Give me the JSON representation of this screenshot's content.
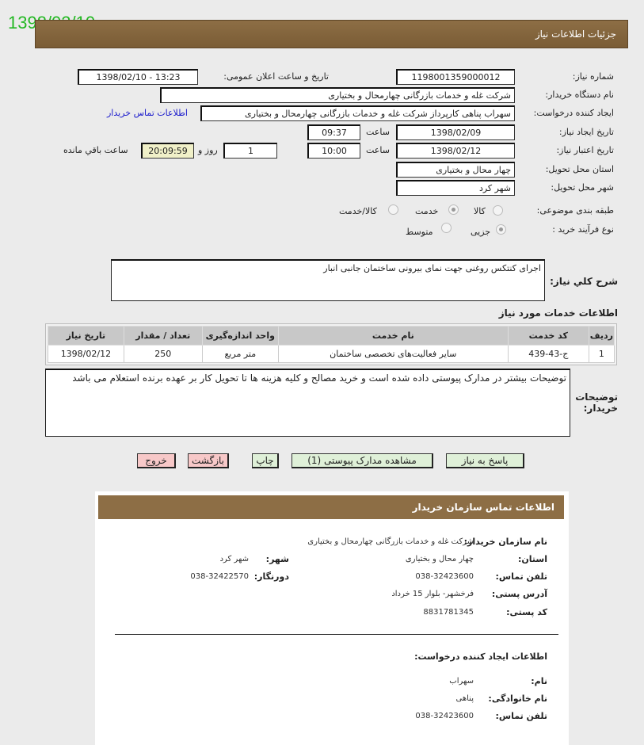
{
  "stamp_date": "1398/02/10",
  "header": {
    "title": "جزئیات اطلاعات نیاز"
  },
  "form": {
    "need_number_label": "شماره نیاز:",
    "need_number": "1198001359000012",
    "announce_label": "تاریخ و ساعت اعلان عمومی:",
    "announce_value": "1398/02/10 - 13:23",
    "buyer_label": "نام دستگاه خریدار:",
    "buyer_value": "شرکت غله و خدمات بازرگانی چهارمحال و بختیاری",
    "creator_label": "ایجاد کننده درخواست:",
    "creator_value": "سهراب پناهی کارپرداز شرکت غله و خدمات بازرگانی چهارمحال و بختیاری",
    "contact_link": "اطلاعات تماس خریدار",
    "created_label": "تاریخ ایجاد نیاز:",
    "created_date": "1398/02/09",
    "time_label": "ساعت",
    "created_time": "09:37",
    "valid_label": "تاریخ اعتبار نیاز:",
    "valid_date": "1398/02/12",
    "valid_time": "10:00",
    "days": "1",
    "days_label": "روز و",
    "remaining": "20:09:59",
    "remaining_label": "ساعت باقي مانده",
    "province_label": "استان محل تحویل:",
    "province": "چهار محال و بختیاری",
    "city_label": "شهر محل تحویل:",
    "city": "شهر کرد",
    "category_label": "طبقه بندی موضوعی:",
    "category_options": [
      "کالا",
      "خدمت",
      "کالا/خدمت"
    ],
    "category_selected": "خدمت",
    "process_label": "نوع فرآیند خرید :",
    "process_options": [
      "جزیی",
      "متوسط"
    ],
    "process_selected": "جزیی",
    "desc_label": "شرح کلي نياز:",
    "desc_value": "اجرای کنتکس روغنی جهت نمای بیرونی ساختمان جانبی انبار"
  },
  "services": {
    "title": "اطلاعات خدمات مورد نیاز",
    "columns": [
      "ردیف",
      "کد خدمت",
      "نام خدمت",
      "واحد اندازه‌گیری",
      "تعداد / مقدار",
      "تاریخ نیاز"
    ],
    "rows": [
      [
        "1",
        "ج-43-439",
        "سایر فعالیت‌های تخصصی ساختمان",
        "متر مربع",
        "250",
        "1398/02/12"
      ]
    ]
  },
  "notes": {
    "label": "توضیحات خریدار:",
    "value": "توضیحات بیشتر در مدارک پیوستی داده شده است و خرید مصالح و کلیه هزینه ها تا تحویل کار بر عهده برنده استعلام می باشد"
  },
  "buttons": {
    "reply": "پاسخ به نیاز",
    "attachments": "مشاهده مدارک پیوستی (1)",
    "print": "چاپ",
    "back": "بازگشت",
    "exit": "خروج"
  },
  "contact": {
    "title": "اطلاعات تماس سازمان خریدار",
    "org_label": "نام سازمان خریدار:",
    "org": "شرکت غله و خدمات بازرگانی چهارمحال و بختیاری",
    "province_label": "استان:",
    "province": "چهار محال و بختیاری",
    "city_label": "شهر:",
    "city": "شهر کرد",
    "phone_label": "تلفن تماس:",
    "phone": "038-32423600",
    "fax_label": "دورنگار:",
    "fax": "038-32422570",
    "address_label": "آدرس پستی:",
    "address": "فرخشهر- بلوار 15 خرداد",
    "postal_label": "کد پستی:",
    "postal": "8831781345",
    "creator_title": "اطلاعات ایجاد کننده درخواست:",
    "name_label": "نام:",
    "name": "سهراب",
    "family_label": "نام خانوادگی:",
    "family": "پناهی",
    "cphone_label": "تلفن تماس:",
    "cphone": "038-32423600"
  }
}
